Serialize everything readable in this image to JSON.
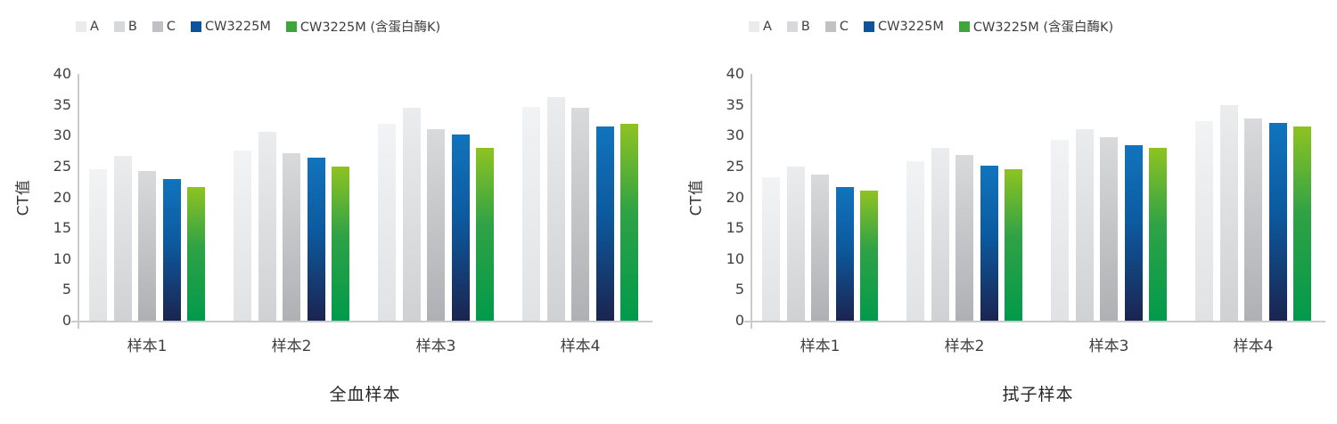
{
  "page": {
    "background": "#ffffff"
  },
  "legend": {
    "items": [
      {
        "label": "A"
      },
      {
        "label": "B"
      },
      {
        "label": "C"
      },
      {
        "label": "CW3225M"
      },
      {
        "label": "CW3225M (含蛋白酶K)"
      }
    ]
  },
  "chart_data": [
    {
      "type": "bar",
      "title": "全血样本",
      "ylabel": "CT值",
      "xlabel": "",
      "ylim": [
        0,
        40
      ],
      "ystep": 5,
      "grid": false,
      "legend_position": "top-left",
      "categories": [
        "样本1",
        "样本2",
        "样本3",
        "样本4"
      ],
      "series": [
        {
          "name": "A",
          "values": [
            24.5,
            27.6,
            31.9,
            34.6
          ]
        },
        {
          "name": "B",
          "values": [
            26.7,
            30.6,
            34.5,
            36.2
          ]
        },
        {
          "name": "C",
          "values": [
            24.2,
            27.2,
            31.1,
            34.5
          ]
        },
        {
          "name": "CW3225M",
          "values": [
            23.0,
            26.4,
            30.2,
            31.5
          ]
        },
        {
          "name": "CW3225M (含蛋白酶K)",
          "values": [
            21.6,
            25.0,
            28.0,
            31.9
          ]
        }
      ]
    },
    {
      "type": "bar",
      "title": "拭子样本",
      "ylabel": "CT值",
      "xlabel": "",
      "ylim": [
        0,
        40
      ],
      "ystep": 5,
      "grid": false,
      "legend_position": "top-left",
      "categories": [
        "样本1",
        "样本2",
        "样本3",
        "样本4"
      ],
      "series": [
        {
          "name": "A",
          "values": [
            23.3,
            25.8,
            29.3,
            32.3
          ]
        },
        {
          "name": "B",
          "values": [
            25.0,
            28.0,
            31.0,
            35.0
          ]
        },
        {
          "name": "C",
          "values": [
            23.7,
            26.8,
            29.7,
            32.8
          ]
        },
        {
          "name": "CW3225M",
          "values": [
            21.6,
            25.1,
            28.5,
            32.0
          ]
        },
        {
          "name": "CW3225M (含蛋白酶K)",
          "values": [
            21.1,
            24.6,
            28.0,
            31.5
          ]
        }
      ]
    }
  ],
  "style": {
    "axis_color": "#c9cbce",
    "tick_text_color": "#404040",
    "title_text_color": "#262626",
    "legend_swatch_colors": [
      "#e9ebed",
      "#d6d8da",
      "#bfc1c4",
      "#0d549b",
      "#3fa63c"
    ],
    "series_gradients": [
      [
        "#f2f3f5",
        "#e0e2e4"
      ],
      [
        "#ebecee",
        "#cfd1d3"
      ],
      [
        "#d8dadc",
        "#aeb0b3"
      ],
      [
        "#1174bd",
        "#0c5a9f",
        "#1b2450"
      ],
      [
        "#8ec321",
        "#2fa246",
        "#019a4b"
      ]
    ]
  }
}
